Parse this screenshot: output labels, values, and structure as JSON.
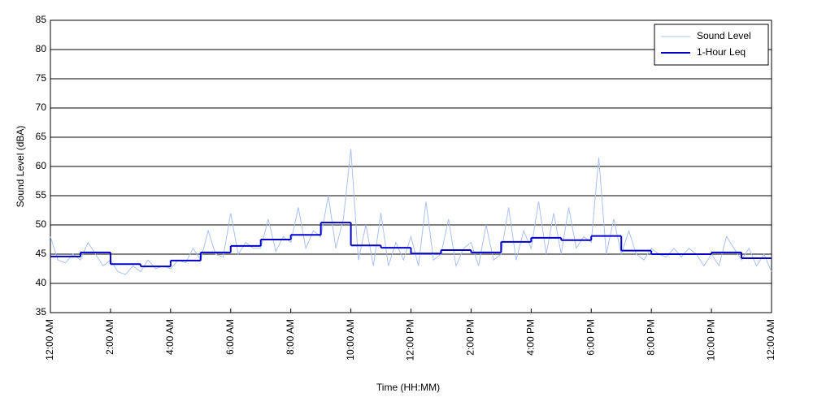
{
  "chart_data": {
    "type": "line",
    "xlabel": "Time (HH:MM)",
    "ylabel": "Sound Level (dBA)",
    "xlim": [
      0,
      24
    ],
    "ylim": [
      35,
      85
    ],
    "xticks": [
      {
        "value": 0,
        "label": "12:00 AM"
      },
      {
        "value": 2,
        "label": "2:00 AM"
      },
      {
        "value": 4,
        "label": "4:00 AM"
      },
      {
        "value": 6,
        "label": "6:00 AM"
      },
      {
        "value": 8,
        "label": "8:00 AM"
      },
      {
        "value": 10,
        "label": "10:00 AM"
      },
      {
        "value": 12,
        "label": "12:00 PM"
      },
      {
        "value": 14,
        "label": "2:00 PM"
      },
      {
        "value": 16,
        "label": "4:00 PM"
      },
      {
        "value": 18,
        "label": "6:00 PM"
      },
      {
        "value": 20,
        "label": "8:00 PM"
      },
      {
        "value": 22,
        "label": "10:00 PM"
      },
      {
        "value": 24,
        "label": "12:00 AM"
      }
    ],
    "yticks": [
      35,
      40,
      45,
      50,
      55,
      60,
      65,
      70,
      75,
      80,
      85
    ],
    "grid": true,
    "legend": "upper right",
    "series": [
      {
        "name": "Sound Level",
        "color": "#a9c1f2",
        "style": "line",
        "x": [
          0,
          0.25,
          0.5,
          0.75,
          1,
          1.25,
          1.5,
          1.75,
          2,
          2.25,
          2.5,
          2.75,
          3,
          3.25,
          3.5,
          3.75,
          4,
          4.25,
          4.5,
          4.75,
          5,
          5.25,
          5.5,
          5.75,
          6,
          6.25,
          6.5,
          6.75,
          7,
          7.25,
          7.5,
          7.75,
          8,
          8.25,
          8.5,
          8.75,
          9,
          9.25,
          9.5,
          9.75,
          10,
          10.25,
          10.5,
          10.75,
          11,
          11.25,
          11.5,
          11.75,
          12,
          12.25,
          12.5,
          12.75,
          13,
          13.25,
          13.5,
          13.75,
          14,
          14.25,
          14.5,
          14.75,
          15,
          15.25,
          15.5,
          15.75,
          16,
          16.25,
          16.5,
          16.75,
          17,
          17.25,
          17.5,
          17.75,
          18,
          18.25,
          18.5,
          18.75,
          19,
          19.25,
          19.5,
          19.75,
          20,
          20.25,
          20.5,
          20.75,
          21,
          21.25,
          21.5,
          21.75,
          22,
          22.25,
          22.5,
          22.75,
          23,
          23.25,
          23.5,
          23.75,
          24
        ],
        "values": [
          48,
          44,
          43.5,
          45,
          44,
          47,
          45,
          43,
          44,
          42,
          41.5,
          43,
          42,
          44,
          42.5,
          43,
          42.5,
          44,
          43.5,
          46,
          44,
          49,
          45,
          44.5,
          52,
          45,
          47,
          46,
          46,
          51,
          45.5,
          48,
          47,
          53,
          46,
          49,
          48,
          55,
          46,
          51,
          63,
          44,
          50,
          43,
          52,
          43,
          47,
          44,
          48,
          43,
          54,
          44,
          45,
          51,
          43,
          46,
          47,
          43,
          50,
          44,
          45,
          53,
          44,
          49,
          46,
          54,
          45,
          52,
          45,
          53,
          46,
          48,
          47,
          61.5,
          45,
          51,
          45,
          49,
          45,
          44,
          46,
          45,
          44.5,
          46,
          44.5,
          46,
          45,
          43,
          45,
          43,
          48,
          46,
          44,
          46,
          43,
          45,
          42
        ]
      },
      {
        "name": "1-Hour Leq",
        "color": "#0000c8",
        "style": "step",
        "x": [
          0,
          1,
          2,
          3,
          4,
          5,
          6,
          7,
          8,
          9,
          10,
          11,
          12,
          13,
          14,
          15,
          16,
          17,
          18,
          19,
          20,
          21,
          22,
          23
        ],
        "values": [
          44.6,
          45.3,
          43.3,
          42.9,
          43.9,
          45.3,
          46.4,
          47.5,
          48.3,
          50.4,
          46.5,
          46.1,
          45.1,
          45.7,
          45.3,
          47.1,
          47.8,
          47.4,
          48.1,
          45.6,
          45.0,
          45.0,
          45.3,
          44.3
        ]
      }
    ]
  }
}
